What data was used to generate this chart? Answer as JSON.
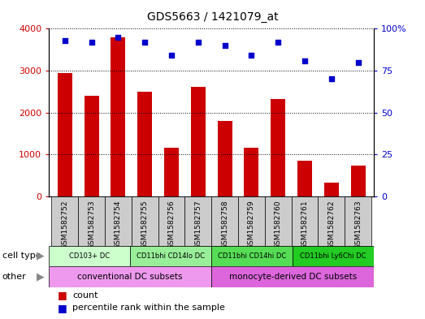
{
  "title": "GDS5663 / 1421079_at",
  "samples": [
    "GSM1582752",
    "GSM1582753",
    "GSM1582754",
    "GSM1582755",
    "GSM1582756",
    "GSM1582757",
    "GSM1582758",
    "GSM1582759",
    "GSM1582760",
    "GSM1582761",
    "GSM1582762",
    "GSM1582763"
  ],
  "counts": [
    2950,
    2390,
    3800,
    2490,
    1160,
    2620,
    1790,
    1150,
    2330,
    840,
    330,
    740
  ],
  "percentiles": [
    93,
    92,
    95,
    92,
    84,
    92,
    90,
    84,
    92,
    81,
    70,
    80
  ],
  "bar_color": "#cc0000",
  "dot_color": "#0000cc",
  "ylim_left": [
    0,
    4000
  ],
  "ylim_right": [
    0,
    100
  ],
  "yticks_left": [
    0,
    1000,
    2000,
    3000,
    4000
  ],
  "yticks_right": [
    0,
    25,
    50,
    75,
    100
  ],
  "cell_type_labels": [
    {
      "label": "CD103+ DC",
      "start": 0,
      "end": 3,
      "color": "#ccffcc"
    },
    {
      "label": "CD11bhi CD14lo DC",
      "start": 3,
      "end": 6,
      "color": "#99ee99"
    },
    {
      "label": "CD11bhi CD14hi DC",
      "start": 6,
      "end": 9,
      "color": "#55dd55"
    },
    {
      "label": "CD11bhi Ly6Chi DC",
      "start": 9,
      "end": 12,
      "color": "#22cc22"
    }
  ],
  "other_labels": [
    {
      "label": "conventional DC subsets",
      "start": 0,
      "end": 6,
      "color": "#ee99ee"
    },
    {
      "label": "monocyte-derived DC subsets",
      "start": 6,
      "end": 12,
      "color": "#dd66dd"
    }
  ],
  "row_label_cell": "cell type",
  "row_label_other": "other",
  "legend_count": "count",
  "legend_percentile": "percentile rank within the sample",
  "xtick_bg_color": "#cccccc",
  "bg_color": "#ffffff"
}
